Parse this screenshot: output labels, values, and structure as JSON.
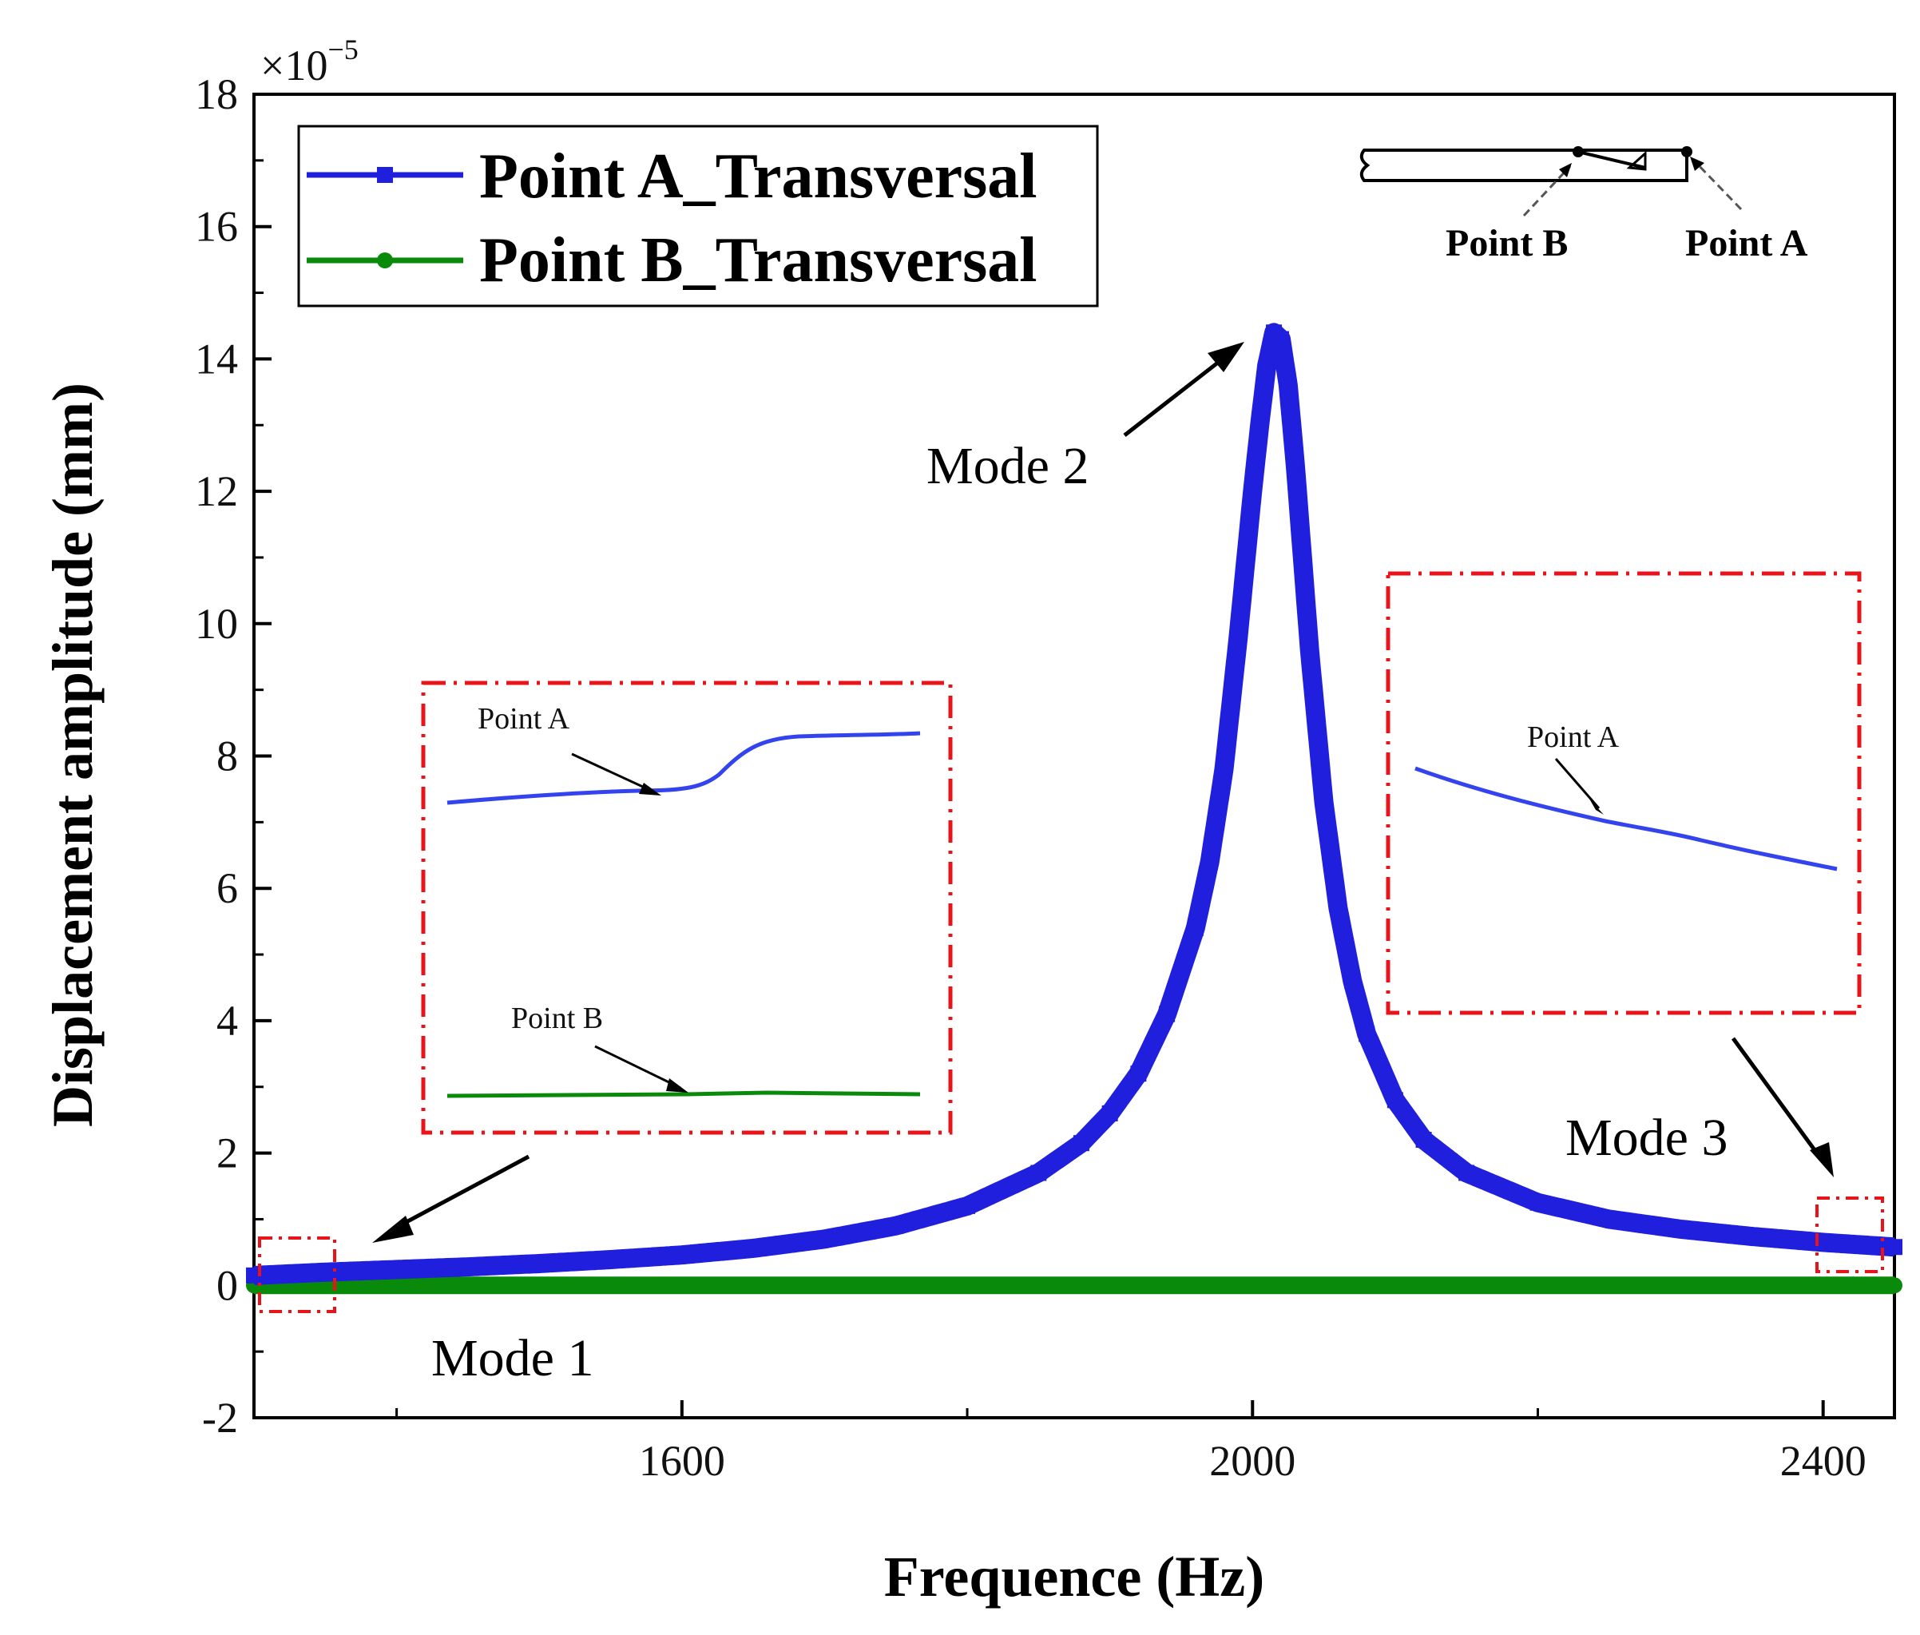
{
  "chart_data": {
    "type": "line",
    "title": "",
    "xlabel": "Frequence (Hz)",
    "ylabel": "Displacement amplitude (mm)",
    "y_multiplier": "×10",
    "y_multiplier_exp": "−5",
    "xlim": [
      1300,
      2450
    ],
    "ylim": [
      -2,
      18
    ],
    "x_ticks": [
      1600,
      2000,
      2400
    ],
    "y_ticks": [
      -2,
      0,
      2,
      4,
      6,
      8,
      10,
      12,
      14,
      16,
      18
    ],
    "legend_position": "top-left",
    "series": [
      {
        "name": "Point A_Transversal",
        "color": "#1f1fdd",
        "marker": "square",
        "x": [
          1300,
          1350,
          1400,
          1450,
          1500,
          1550,
          1600,
          1650,
          1700,
          1750,
          1800,
          1850,
          1880,
          1900,
          1920,
          1940,
          1960,
          1970,
          1980,
          1990,
          2000,
          2005,
          2010,
          2015,
          2020,
          2025,
          2030,
          2035,
          2040,
          2050,
          2060,
          2070,
          2080,
          2100,
          2120,
          2150,
          2200,
          2250,
          2300,
          2350,
          2400,
          2450
        ],
        "values": [
          0.15,
          0.2,
          0.24,
          0.28,
          0.33,
          0.39,
          0.46,
          0.56,
          0.7,
          0.9,
          1.2,
          1.7,
          2.15,
          2.6,
          3.2,
          4.1,
          5.4,
          6.4,
          7.8,
          9.8,
          12.0,
          13.0,
          13.9,
          14.4,
          14.3,
          13.6,
          12.4,
          11.0,
          9.6,
          7.3,
          5.7,
          4.6,
          3.8,
          2.8,
          2.2,
          1.7,
          1.25,
          1.0,
          0.85,
          0.74,
          0.65,
          0.58
        ]
      },
      {
        "name": "Point B_Transversal",
        "color": "#0a8a0a",
        "marker": "circle",
        "x": [
          1300,
          1600,
          2000,
          2400,
          2450
        ],
        "values": [
          0.0,
          0.0,
          0.0,
          0.0,
          0.0
        ]
      }
    ],
    "annotations": {
      "mode1": "Mode 1",
      "mode2": "Mode 2",
      "mode3": "Mode 3",
      "inset1_point_a": "Point A",
      "inset1_point_b": "Point B",
      "inset2_point_a": "Point A",
      "schematic_point_a": "Point A",
      "schematic_point_b": "Point B"
    }
  }
}
